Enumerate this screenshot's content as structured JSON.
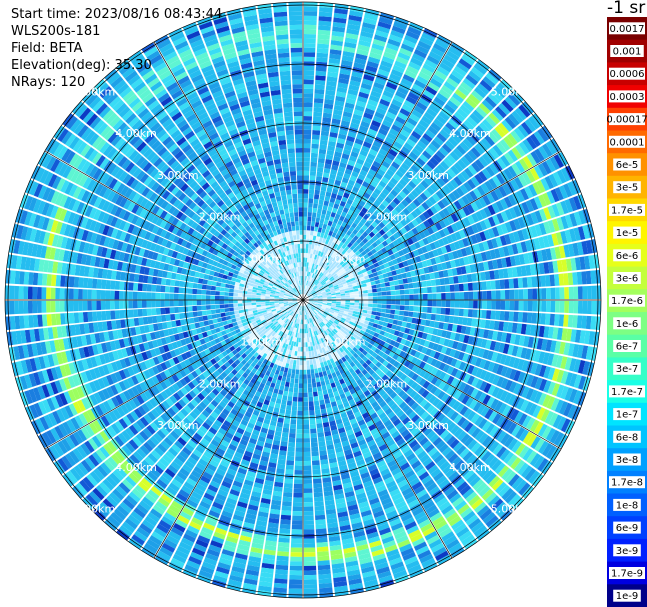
{
  "header": {
    "start_time": "Start time: 2023/08/16 08:43:44",
    "instrument": "WLS200s-181",
    "field": "Field: BETA",
    "elevation": "Elevation(deg): 35.30",
    "nrays": "NRays: 120"
  },
  "colorbar": {
    "unit_label": "-1 sr",
    "tick_labels": [
      "0.0017",
      "0.001",
      "0.0006",
      "0.0003",
      "0.00017",
      "0.0001",
      "6e-5",
      "3e-5",
      "1.7e-5",
      "1e-5",
      "6e-6",
      "3e-6",
      "1.7e-6",
      "1e-6",
      "6e-7",
      "3e-7",
      "1.7e-7",
      "1e-7",
      "6e-8",
      "3e-8",
      "1.7e-8",
      "1e-8",
      "6e-9",
      "3e-9",
      "1.7e-9",
      "1e-9"
    ],
    "colors": [
      "#7a0000",
      "#a00000",
      "#c80000",
      "#f00000",
      "#ff4000",
      "#ff6a00",
      "#ff9100",
      "#ffb400",
      "#ffd800",
      "#fff500",
      "#e6ff1a",
      "#c4ff3c",
      "#a3ff5d",
      "#7dff84",
      "#5affa6",
      "#36ffc8",
      "#1affe6",
      "#00e4ff",
      "#00c4ff",
      "#00a0ff",
      "#0080ff",
      "#0060ff",
      "#0040ff",
      "#0020ff",
      "#0000e0",
      "#00008a"
    ]
  },
  "chart_data": {
    "type": "heatmap",
    "projection": "polar PPI",
    "field": "BETA",
    "units": "sr-1",
    "elevation_deg": 35.3,
    "n_rays": 120,
    "max_range_km": 5.2,
    "range_rings_km": [
      1,
      2,
      3,
      4,
      5
    ],
    "range_ring_labels": [
      "1.00km",
      "2.00km",
      "3.00km",
      "4.00km",
      "5.00km"
    ],
    "background_level": "1e-7 to 3e-8 (light-to-medium blue)",
    "enhanced_layer": {
      "approx_range_km": 4.1,
      "approx_value": "1.7e-6 to 6e-7"
    },
    "color_scale": "log",
    "color_range": [
      "1e-9",
      "0.0017"
    ]
  }
}
